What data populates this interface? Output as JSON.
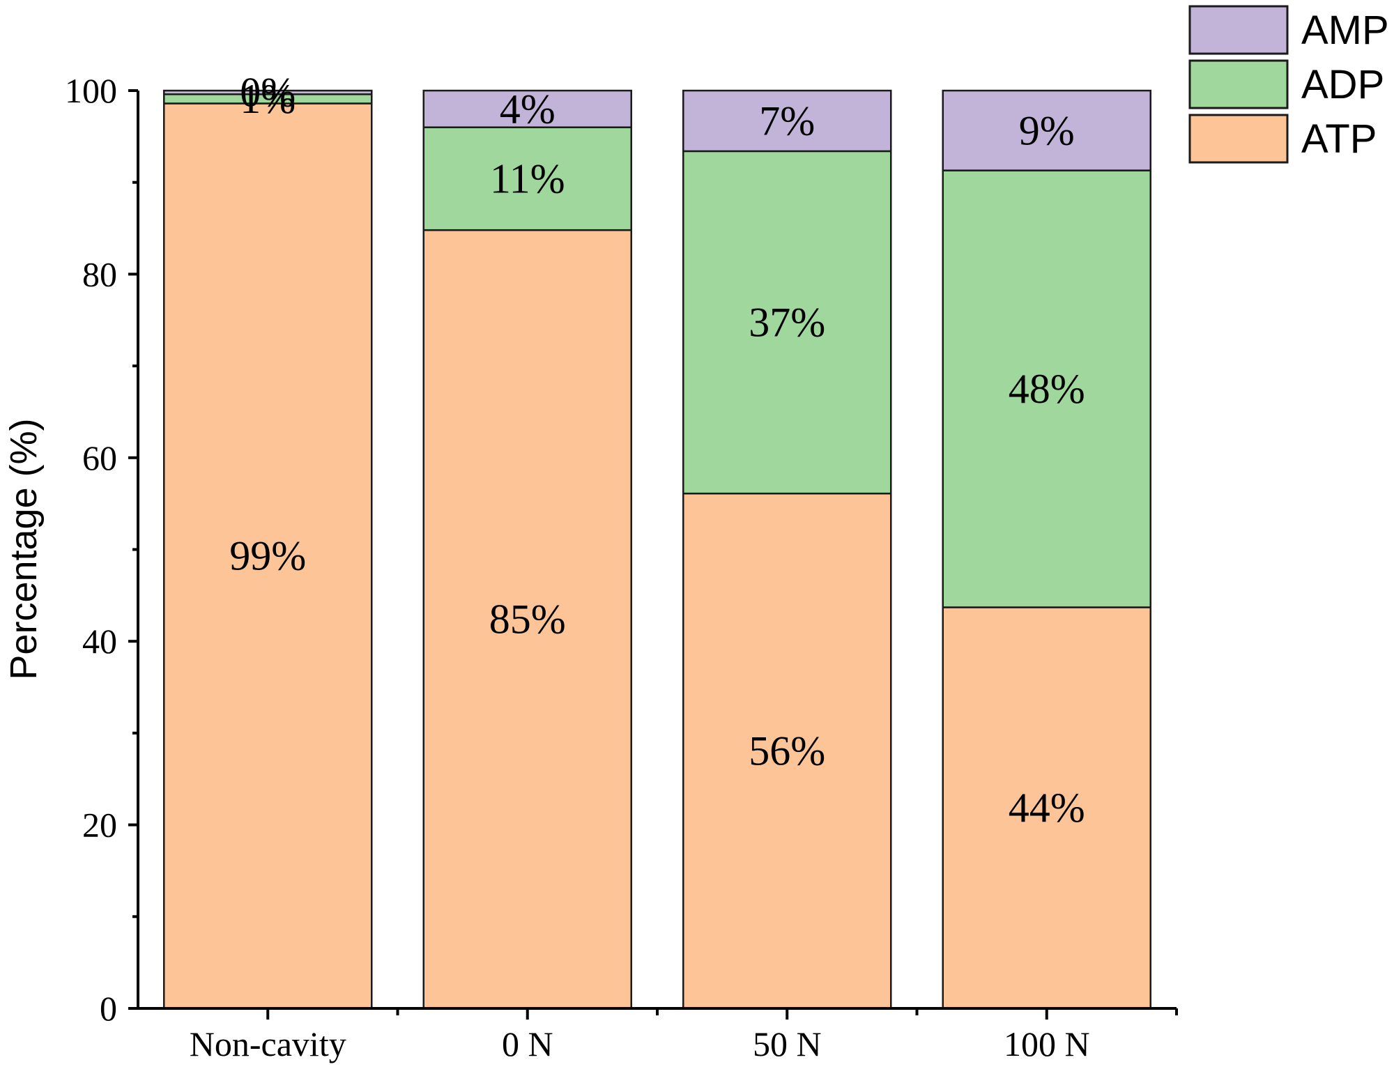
{
  "chart_data": {
    "type": "bar",
    "stacked": true,
    "title": "",
    "xlabel": "",
    "ylabel": "Percentage (%)",
    "ylim": [
      0,
      100
    ],
    "yticks": [
      "0",
      "20",
      "40",
      "60",
      "80",
      "100"
    ],
    "categories": [
      "Non-cavity",
      "0 N",
      "50 N",
      "100 N"
    ],
    "series": [
      {
        "name": "ATP",
        "color": "#fdc597",
        "values": [
          98.6,
          84.8,
          56.1,
          43.7
        ],
        "labels": [
          "99%",
          "85%",
          "56%",
          "44%"
        ]
      },
      {
        "name": "ADP",
        "color": "#a0d79c",
        "values": [
          1.0,
          11.2,
          37.3,
          47.6
        ],
        "labels": [
          "1%",
          "11%",
          "37%",
          "48%"
        ]
      },
      {
        "name": "AMP",
        "color": "#c2b4d9",
        "values": [
          0.4,
          4.0,
          6.6,
          8.7
        ],
        "labels": [
          "0%",
          "4%",
          "7%",
          "9%"
        ]
      }
    ],
    "legend": {
      "position": "top-right",
      "order": [
        "AMP",
        "ADP",
        "ATP"
      ]
    }
  }
}
